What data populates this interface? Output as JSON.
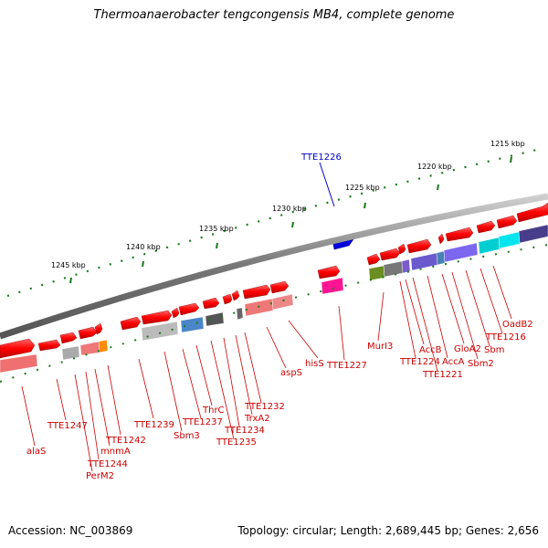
{
  "title": "Thermoanaerobacter tengcongensis MB4, complete genome",
  "accession": "Accession: NC_003869",
  "stats": "Topology: circular; Length: 2,689,445 bp; Genes: 2,656",
  "colors": {
    "gene_red": "#ff0000",
    "label_red": "#cc0000",
    "highlight_blue": "#0000cc",
    "backbone": "#888888",
    "scale_green": "#1a7a1a"
  },
  "scale_ticks": [
    "1215 kbp",
    "1220 kbp",
    "1225 kbp",
    "1230 kbp",
    "1235 kbp",
    "1240 kbp",
    "1245 kbp"
  ],
  "highlight_gene": "TTE1226",
  "gene_labels": [
    "OadB2",
    "TTE1216",
    "Sbm",
    "Sbm2",
    "GloA2",
    "AccA",
    "TTE1221",
    "AccB",
    "TTE1224",
    "MurI3",
    "TTE1227",
    "hisS",
    "aspS",
    "TTE1232",
    "TrxA2",
    "TTE1234",
    "TTE1235",
    "ThrC",
    "TTE1237",
    "Sbm3",
    "TTE1239",
    "TTE1242",
    "mnmA",
    "TTE1244",
    "PerM2",
    "TTE1247",
    "alaS"
  ]
}
